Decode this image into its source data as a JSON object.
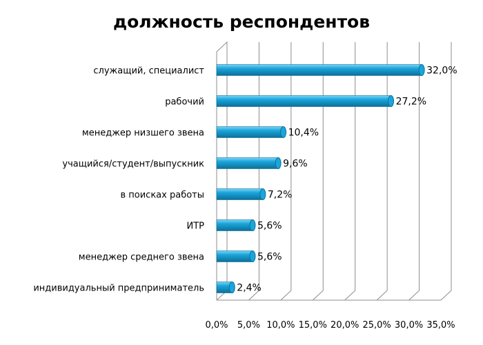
{
  "chart_data": {
    "type": "bar",
    "orientation": "horizontal",
    "title": "должность респондентов",
    "xlabel": "",
    "ylabel": "",
    "categories": [
      "служащий, специалист",
      "рабочий",
      "менеджер низшего звена",
      "учащийся/студент/выпускник",
      "в поисках работы",
      "ИТР",
      "менеджер среднего звена",
      "индивидуальный предприниматель"
    ],
    "values": [
      32.0,
      27.2,
      10.4,
      9.6,
      7.2,
      5.6,
      5.6,
      2.4
    ],
    "value_labels": [
      "32,0%",
      "27,2%",
      "10,4%",
      "9,6%",
      "7,2%",
      "5,6%",
      "5,6%",
      "2,4%"
    ],
    "xlim": [
      0,
      35
    ],
    "x_ticks": [
      0,
      5,
      10,
      15,
      20,
      25,
      30,
      35
    ],
    "x_tick_labels": [
      "0,0%",
      "5,0%",
      "10,0%",
      "15,0%",
      "20,0%",
      "25,0%",
      "30,0%",
      "35,0%"
    ],
    "grid": true,
    "legend": "none",
    "bar_color": "#1aa6dc",
    "bar_highlight_color": "#7fd6f5",
    "bar_shadow_color": "#0d6f97"
  }
}
